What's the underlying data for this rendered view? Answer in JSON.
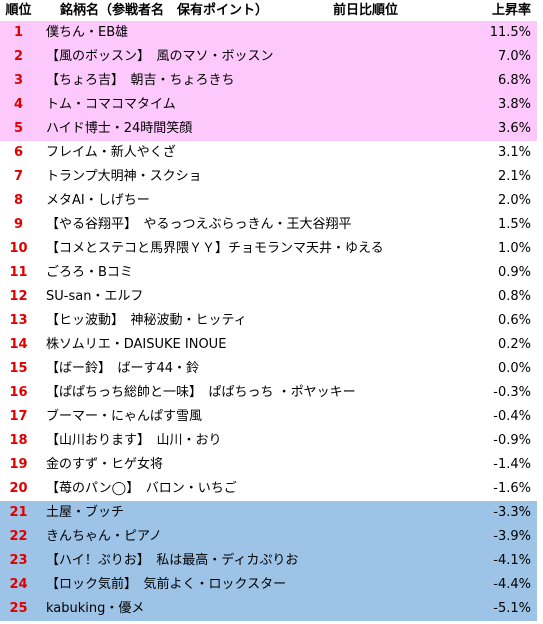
{
  "header": {
    "rank": "順位",
    "name": "銘柄名（参戦者名　保有ポイント）",
    "prev": "前日比順位",
    "change": "上昇率"
  },
  "table": {
    "rows": [
      [
        1,
        "僕ちん・EB雄",
        "11.5%"
      ],
      [
        2,
        "【風のボッスン】　風のマソ・ボッスン",
        "7.0%"
      ],
      [
        3,
        "【ちょろ吉】　朝吉・ちょろきち",
        "6.8%"
      ],
      [
        4,
        "トム・コマコマタイム",
        "3.8%"
      ],
      [
        5,
        "ハイド博士・24時間笑顔",
        "3.6%"
      ],
      [
        6,
        "フレイム・新人やくざ",
        "3.1%"
      ],
      [
        7,
        "トランプ大明神・スクショ",
        "2.1%"
      ],
      [
        8,
        "メタAI・しげちー",
        "2.0%"
      ],
      [
        9,
        "【やる谷翔平】　やるっつえぶらっきん・王大谷翔平",
        "1.5%"
      ],
      [
        10,
        "【コメとステコと馬界隈ＹＹ】チョモランマ天井・ゆえる",
        "1.0%"
      ],
      [
        11,
        "ごろろ・Bコミ",
        "0.9%"
      ],
      [
        12,
        "SU-san・エルフ",
        "0.8%"
      ],
      [
        13,
        "【ヒッ波動】　神秘波動・ヒッティ",
        "0.6%"
      ],
      [
        14,
        "株ソムリエ・DAISUKE INOUE",
        "0.2%"
      ],
      [
        15,
        "【ばー鈴】　ばーす44・鈴",
        "0.0%"
      ],
      [
        16,
        "【ぱぱちっち総帥と一味】　ぱぱちっち ・ポヤッキー",
        "-0.3%"
      ],
      [
        17,
        "ブーマー・にゃんぱす雪風",
        "-0.4%"
      ],
      [
        18,
        "【山川おります】　山川・おり",
        "-0.9%"
      ],
      [
        19,
        "金のすず・ヒゲ女将",
        "-1.4%"
      ],
      [
        20,
        "【苺のパン◯】　バロン・いちご",
        "-1.6%"
      ],
      [
        21,
        "土屋・ブッチ",
        "-3.3%"
      ],
      [
        22,
        "きんちゃん・ピアノ",
        "-3.9%"
      ],
      [
        23,
        "【ハイ！ぷりお】　私は最高・ディカぷりお",
        "-4.1%"
      ],
      [
        24,
        "【ロック気前】　気前よく・ロックスター",
        "-4.4%"
      ],
      [
        25,
        "kabuking・優メ",
        "-5.1%"
      ]
    ]
  }
}
